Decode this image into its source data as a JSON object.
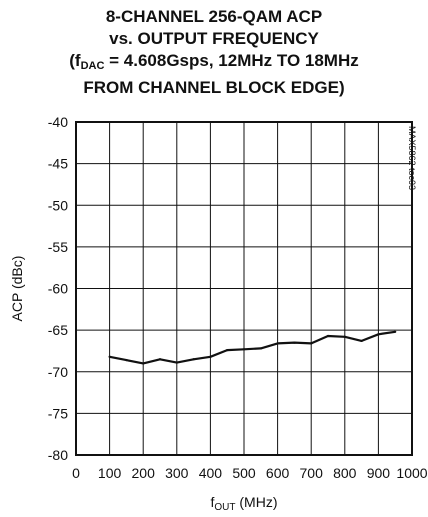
{
  "chart_data": {
    "type": "line",
    "title": {
      "line1": "8-CHANNEL 256-QAM ACP",
      "line2": "vs. OUTPUT FREQUENCY",
      "line3_prefix": "(f",
      "line3_sub": "DAC",
      "line3_suffix": " = 4.608Gsps, 12MHz TO 18MHz",
      "line4": "FROM CHANNEL BLOCK EDGE)"
    },
    "xlabel_main": "f",
    "xlabel_sub": "OUT",
    "xlabel_unit": " (MHz)",
    "ylabel": "ACP (dBc)",
    "xlim": [
      0,
      1000
    ],
    "ylim": [
      -80,
      -40
    ],
    "xticks": [
      0,
      100,
      200,
      300,
      400,
      500,
      600,
      700,
      800,
      900,
      1000
    ],
    "yticks": [
      -40,
      -45,
      -50,
      -55,
      -60,
      -65,
      -70,
      -75,
      -80
    ],
    "grid": true,
    "side_label": "MAX5862 toc03",
    "series": [
      {
        "x": [
          100,
          150,
          200,
          250,
          300,
          350,
          400,
          450,
          500,
          550,
          600,
          650,
          700,
          750,
          800,
          850,
          900,
          950
        ],
        "y": [
          -68.2,
          -68.6,
          -69.0,
          -68.5,
          -68.9,
          -68.5,
          -68.2,
          -67.4,
          -67.3,
          -67.2,
          -66.6,
          -66.5,
          -66.6,
          -65.7,
          -65.8,
          -66.3,
          -65.5,
          -65.2
        ]
      }
    ]
  }
}
